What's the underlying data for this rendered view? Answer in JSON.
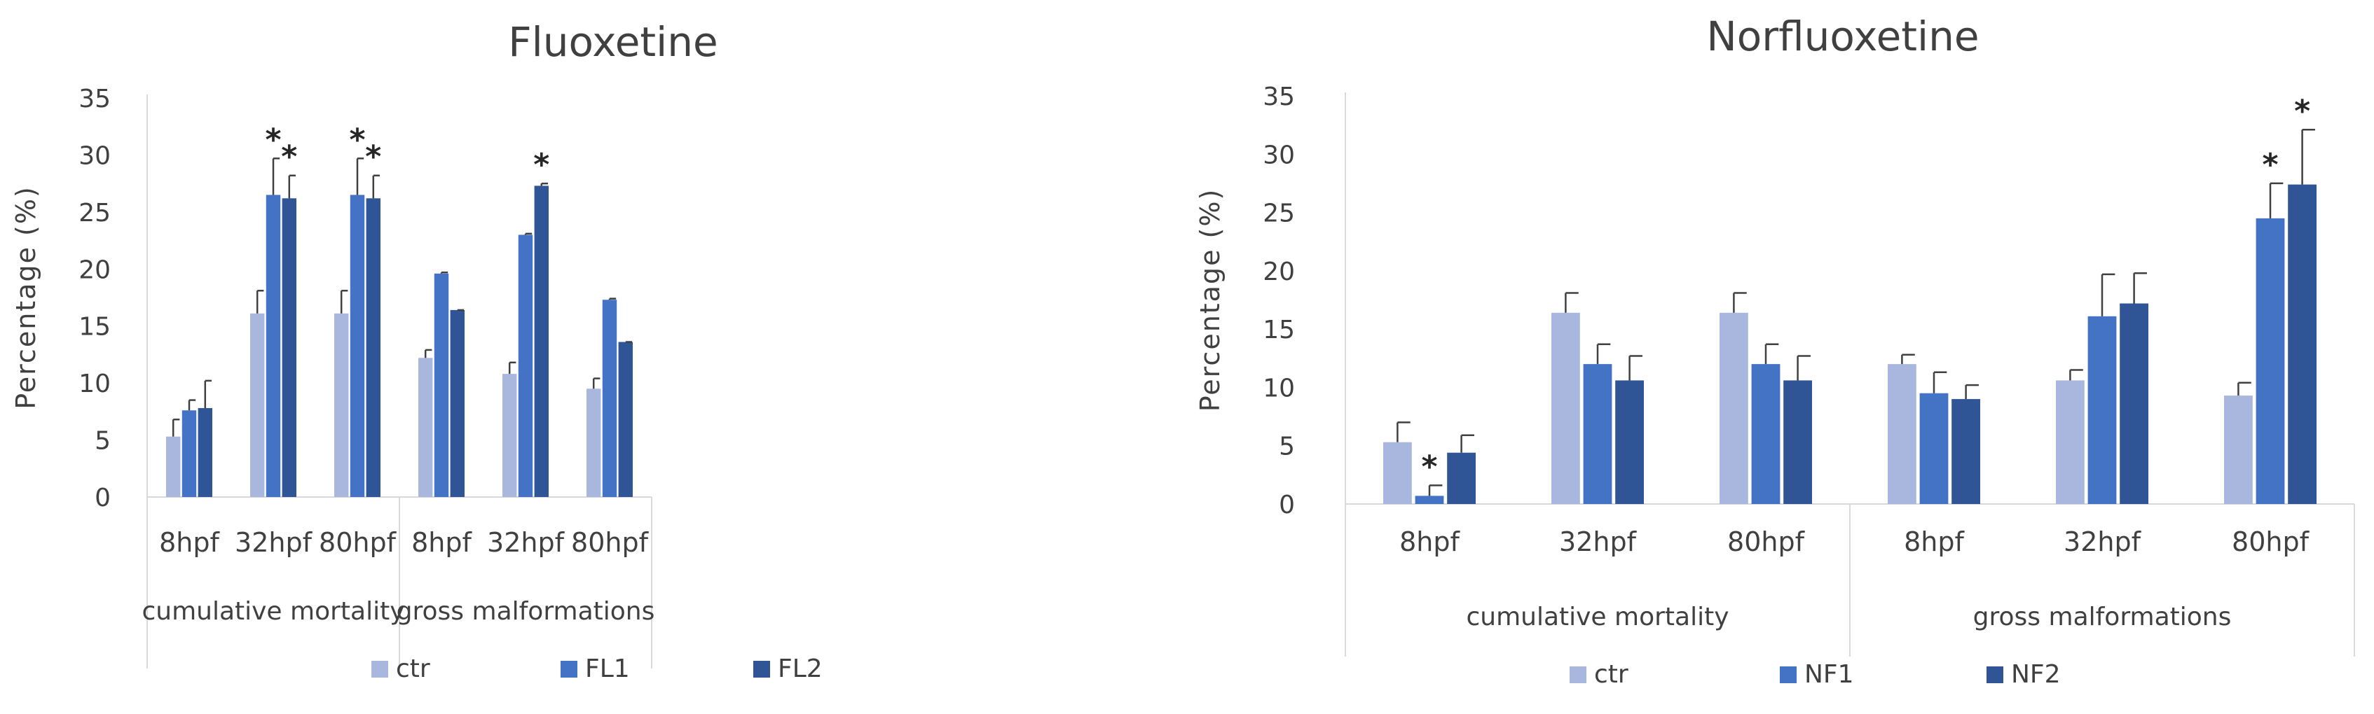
{
  "colors": {
    "ctr": "#a9b6de",
    "s1": "#4472c4",
    "s2": "#2f5597",
    "axis": "#d9d9d9",
    "text": "#404040"
  },
  "chart_data": [
    {
      "type": "bar",
      "title": "Fluoxetine",
      "ylabel": "Percentage (%)",
      "xlabel": "",
      "ylim": [
        0,
        35
      ],
      "yticks": [
        0,
        5,
        10,
        15,
        20,
        25,
        30,
        35
      ],
      "groups": [
        "cumulative mortality",
        "gross malformations"
      ],
      "categories": [
        "8hpf",
        "32hpf",
        "80hpf",
        "8hpf",
        "32hpf",
        "80hpf"
      ],
      "legend_position": "bottom",
      "series": [
        {
          "name": "ctr",
          "values": [
            5.3,
            16.1,
            16.1,
            12.2,
            10.8,
            9.5
          ],
          "errors": [
            1.5,
            2.0,
            2.0,
            0.7,
            1.0,
            0.9
          ],
          "stars": [
            false,
            false,
            false,
            false,
            false,
            false
          ]
        },
        {
          "name": "FL1",
          "values": [
            7.6,
            26.5,
            26.5,
            19.6,
            23.0,
            17.3
          ],
          "errors": [
            0.9,
            3.2,
            3.2,
            0.1,
            0.1,
            0.1
          ],
          "stars": [
            false,
            true,
            true,
            false,
            false,
            false
          ]
        },
        {
          "name": "FL2",
          "values": [
            7.8,
            26.2,
            26.2,
            16.4,
            27.3,
            13.6
          ],
          "errors": [
            2.4,
            2.0,
            2.0,
            0.0,
            0.2,
            0.0
          ],
          "stars": [
            false,
            true,
            true,
            false,
            true,
            false
          ]
        }
      ],
      "star_label": "*"
    },
    {
      "type": "bar",
      "title": "Norfluoxetine",
      "ylabel": "Percentage (%)",
      "xlabel": "",
      "ylim": [
        0,
        35
      ],
      "yticks": [
        0,
        5,
        10,
        15,
        20,
        25,
        30,
        35
      ],
      "groups": [
        "cumulative mortality",
        "gross malformations"
      ],
      "categories": [
        "8hpf",
        "32hpf",
        "80hpf",
        "8hpf",
        "32hpf",
        "80hpf"
      ],
      "legend_position": "bottom",
      "series": [
        {
          "name": "ctr",
          "values": [
            5.3,
            16.4,
            16.4,
            12.0,
            10.6,
            9.3
          ],
          "errors": [
            1.7,
            1.7,
            1.7,
            0.8,
            0.9,
            1.1
          ],
          "stars": [
            false,
            false,
            false,
            false,
            false,
            false
          ]
        },
        {
          "name": "NF1",
          "values": [
            0.7,
            12.0,
            12.0,
            9.5,
            16.1,
            24.5
          ],
          "errors": [
            0.9,
            1.7,
            1.7,
            1.8,
            3.6,
            3.0
          ],
          "stars": [
            true,
            false,
            false,
            false,
            false,
            true
          ]
        },
        {
          "name": "NF2",
          "values": [
            4.4,
            10.6,
            10.6,
            9.0,
            17.2,
            27.4
          ],
          "errors": [
            1.5,
            2.1,
            2.1,
            1.2,
            2.6,
            4.7
          ],
          "stars": [
            false,
            false,
            false,
            false,
            false,
            true
          ]
        }
      ],
      "star_label": "*"
    }
  ]
}
